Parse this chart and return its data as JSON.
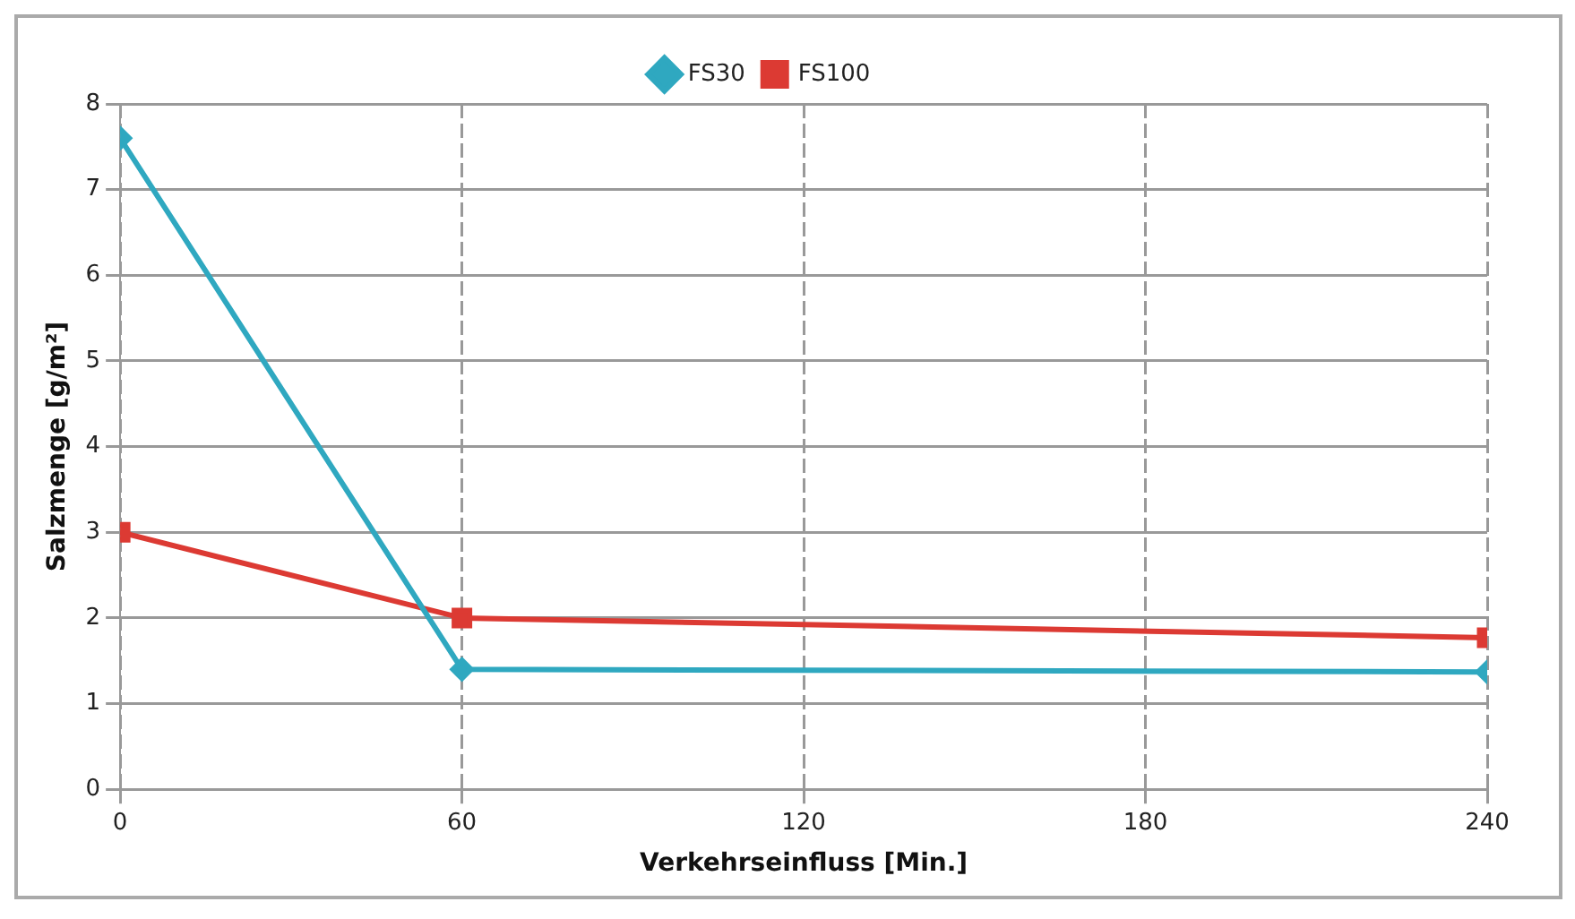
{
  "chart_data": {
    "type": "line",
    "xlabel": "Verkehrseinfluss [Min.]",
    "ylabel": "Salzmenge [g/m²]",
    "x": [
      0,
      60,
      240
    ],
    "series": [
      {
        "name": "FS30",
        "color": "#2fa8c0",
        "values": [
          7.6,
          1.4,
          1.37
        ],
        "marker": "diamond"
      },
      {
        "name": "FS100",
        "color": "#dc3a33",
        "values": [
          3,
          2,
          1.77
        ],
        "marker": "square"
      }
    ],
    "xlim": [
      0,
      240
    ],
    "xticks": [
      0,
      60,
      120,
      180,
      240
    ],
    "ylim": [
      0,
      8
    ],
    "yticks": [
      0,
      1,
      2,
      3,
      4,
      5,
      6,
      7,
      8
    ],
    "grid": true,
    "legend": "top",
    "line_style": "solid"
  }
}
